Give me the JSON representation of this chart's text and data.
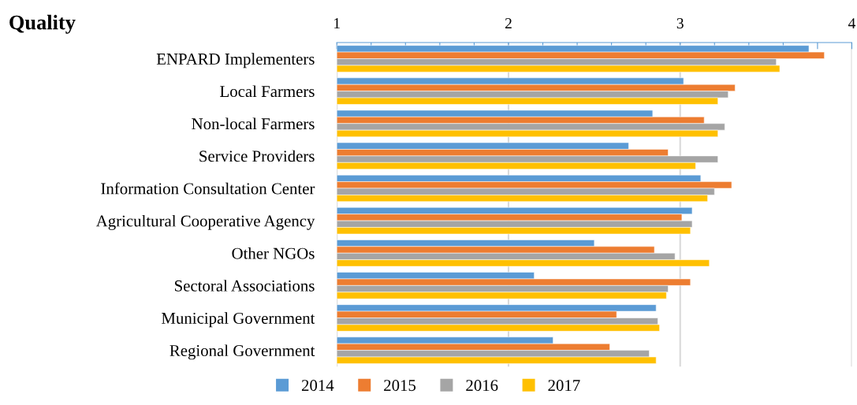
{
  "chart_data": {
    "type": "bar",
    "orientation": "horizontal",
    "title": "Quality",
    "categories": [
      "ENPARD Implementers",
      "Local Farmers",
      "Non-local Farmers",
      "Service Providers",
      "Information Consultation Center",
      "Agricultural Cooperative Agency",
      "Other NGOs",
      "Sectoral Associations",
      "Municipal Government",
      "Regional Government"
    ],
    "series": [
      {
        "name": "2014",
        "color": "#5b9bd5",
        "values": [
          3.75,
          3.02,
          2.84,
          2.7,
          3.12,
          3.07,
          2.5,
          2.15,
          2.86,
          2.26
        ]
      },
      {
        "name": "2015",
        "color": "#ed7d31",
        "values": [
          3.84,
          3.32,
          3.14,
          2.93,
          3.3,
          3.01,
          2.85,
          3.06,
          2.63,
          2.59
        ]
      },
      {
        "name": "2016",
        "color": "#a5a5a5",
        "values": [
          3.56,
          3.28,
          3.26,
          3.22,
          3.2,
          3.07,
          2.97,
          2.93,
          2.87,
          2.82
        ]
      },
      {
        "name": "2017",
        "color": "#ffc000",
        "values": [
          3.58,
          3.22,
          3.22,
          3.09,
          3.16,
          3.06,
          3.17,
          2.92,
          2.88,
          2.86
        ]
      }
    ],
    "xlim": [
      1,
      4
    ],
    "xticks": [
      1,
      {
        "value": 1.2,
        "label": null
      },
      {
        "value": 1.4,
        "label": null
      },
      {
        "value": 1.6,
        "label": null
      },
      {
        "value": 1.8,
        "label": null
      },
      2,
      {
        "value": 2.2,
        "label": null
      },
      {
        "value": 2.4,
        "label": null
      },
      {
        "value": 2.6,
        "label": null
      },
      {
        "value": 2.8,
        "label": null
      },
      3,
      {
        "value": 3.2,
        "label": null
      },
      {
        "value": 3.4,
        "label": null
      },
      {
        "value": 3.6,
        "label": null
      },
      {
        "value": 3.8,
        "label": null
      },
      4
    ],
    "grid": "x",
    "legend": "bottom"
  }
}
